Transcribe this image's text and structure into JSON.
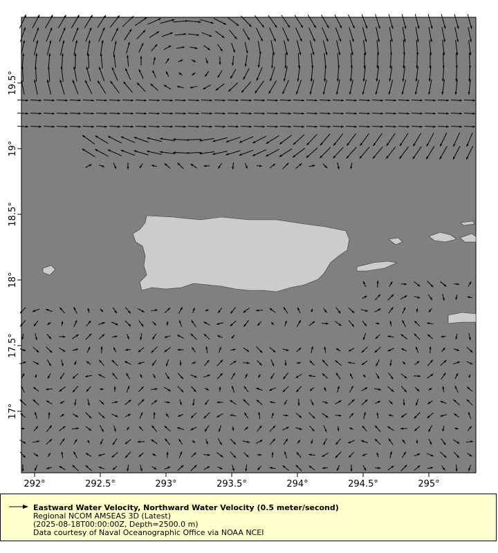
{
  "map": {
    "x_ticks": [
      "292°",
      "292.5°",
      "293°",
      "293.5°",
      "294°",
      "294.5°",
      "295°"
    ],
    "y_ticks": [
      "19.5°",
      "19°",
      "18.5°",
      "18°",
      "17.5°",
      "17°"
    ],
    "lon_range": [
      291.9,
      295.35
    ],
    "lat_range": [
      16.53,
      20.0
    ],
    "colors": {
      "ocean": "#808080",
      "land": "#cccccc",
      "arrow": "#000000",
      "legend_bg": "#ffffcc"
    }
  },
  "legend": {
    "title": "Eastward Water Velocity, Northward Water Velocity (0.5 meter/second)",
    "line1": "Regional NCOM AMSEAS 3D (Latest)",
    "line2": "(2025-08-18T00:00:00Z, Depth=2500.0 m)",
    "line3": "Data courtesy of Naval Oceanographic Office via NOAA NCEI"
  }
}
